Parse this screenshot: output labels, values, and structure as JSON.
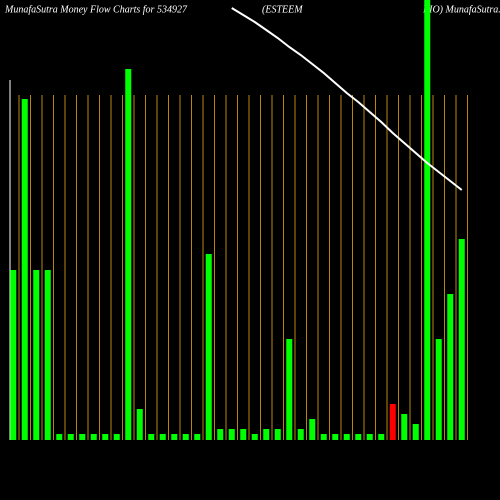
{
  "chart_data": {
    "type": "bar",
    "title": "MunafaSutra  Money Flow  Charts for 534927",
    "title_2": "(ESTEEM",
    "title_3": "BIO) MunafaSutra.com",
    "categories": [
      null,
      null,
      null,
      null,
      null,
      null,
      null,
      null,
      null,
      null,
      null,
      null,
      null,
      null,
      null,
      null,
      null,
      null,
      null,
      null,
      null,
      null,
      null,
      null,
      null,
      null,
      null,
      null,
      null,
      null,
      null,
      null,
      null,
      null,
      null,
      null,
      null,
      null,
      null,
      null
    ],
    "values": [
      170,
      341,
      170,
      170,
      6,
      6,
      6,
      6,
      6,
      6,
      371,
      31,
      6,
      6,
      6,
      6,
      6,
      186,
      11,
      11,
      11,
      6,
      11,
      11,
      101,
      11,
      21,
      6,
      6,
      6,
      6,
      6,
      6,
      36,
      26,
      16,
      440,
      101,
      146,
      201
    ],
    "colors": [
      "#00ff00",
      "#00ff00",
      "#00ff00",
      "#00ff00",
      "#00ff00",
      "#00ff00",
      "#00ff00",
      "#00ff00",
      "#00ff00",
      "#00ff00",
      "#00ff00",
      "#00ff00",
      "#00ff00",
      "#00ff00",
      "#00ff00",
      "#00ff00",
      "#00ff00",
      "#00ff00",
      "#00ff00",
      "#00ff00",
      "#00ff00",
      "#00ff00",
      "#00ff00",
      "#00ff00",
      "#00ff00",
      "#00ff00",
      "#00ff00",
      "#00ff00",
      "#00ff00",
      "#00ff00",
      "#00ff00",
      "#00ff00",
      "#00ff00",
      "#ff0000",
      "#00ff00",
      "#00ff00",
      "#00ff00",
      "#00ff00",
      "#00ff00",
      "#00ff00"
    ],
    "line": {
      "color": "#ffffff",
      "values": [
        null,
        null,
        null,
        null,
        null,
        null,
        null,
        null,
        null,
        null,
        null,
        null,
        null,
        null,
        null,
        null,
        null,
        null,
        null,
        432,
        425,
        418,
        410,
        402,
        393,
        385,
        376,
        367,
        357,
        347,
        338,
        328,
        318,
        307,
        297,
        287,
        277,
        268,
        259,
        250
      ]
    },
    "ylim": [
      0,
      440
    ]
  }
}
